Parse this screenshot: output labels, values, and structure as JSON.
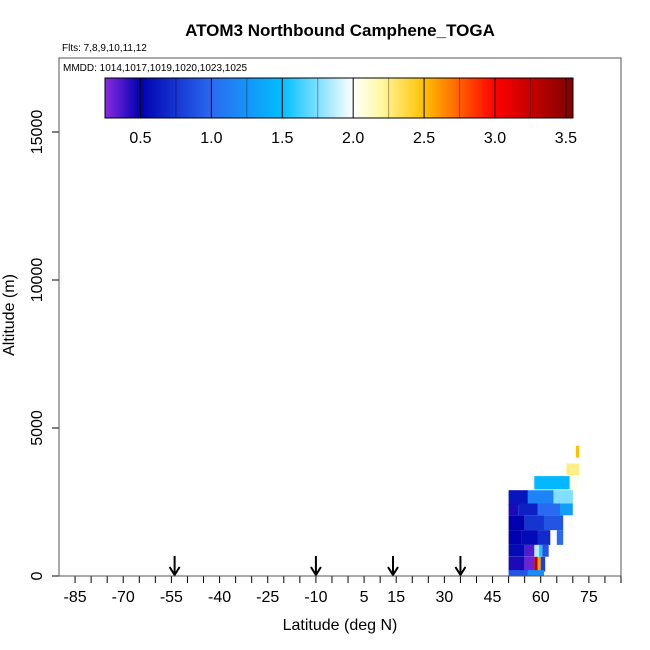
{
  "chart_data": {
    "type": "heatmap",
    "title": "ATOM3 Northbound Camphene_TOGA",
    "flights_label": "Flts: 7,8,9,10,11,12",
    "dates_label": "MMDD: 1014,1017,1019,1020,1023,1025",
    "xlabel": "Latitude (deg N)",
    "ylabel": "Altitude (m)",
    "xlim": [
      -90,
      85
    ],
    "ylim": [
      0,
      17500
    ],
    "x_ticks": [
      -85,
      -70,
      -55,
      -40,
      -25,
      -10,
      5,
      15,
      30,
      45,
      60,
      75
    ],
    "x_tick_labels": [
      "-85",
      "-70",
      "-55",
      "-40",
      "-25",
      "-10",
      "5",
      "15",
      "30",
      "45",
      "60",
      "75"
    ],
    "y_ticks": [
      0,
      5000,
      10000,
      15000
    ],
    "y_tick_labels": [
      "0",
      "5000",
      "10000",
      "15000"
    ],
    "colorbar": {
      "range": [
        0.25,
        3.55
      ],
      "ticks": [
        0.5,
        1.0,
        1.5,
        2.0,
        2.5,
        3.0,
        3.5
      ],
      "tick_labels": [
        "0.5",
        "1.0",
        "1.5",
        "2.0",
        "2.5",
        "3.0",
        "3.5"
      ],
      "stops": [
        {
          "v": 0.25,
          "c": "#8a2be2"
        },
        {
          "v": 0.5,
          "c": "#0000b0"
        },
        {
          "v": 1.0,
          "c": "#2a6af0"
        },
        {
          "v": 1.5,
          "c": "#00bfff"
        },
        {
          "v": 2.0,
          "c": "#ffffff"
        },
        {
          "v": 2.2,
          "c": "#fff8a0"
        },
        {
          "v": 2.5,
          "c": "#ffc000"
        },
        {
          "v": 3.0,
          "c": "#ff0000"
        },
        {
          "v": 3.55,
          "c": "#800000"
        }
      ]
    },
    "flight_arrows_lat": [
      -54,
      -10,
      14,
      35
    ],
    "cells": [
      {
        "lat": 71.5,
        "alt": 4200,
        "w": 1.0,
        "h": 400,
        "v": 2.5
      },
      {
        "lat": 70.0,
        "alt": 3600,
        "w": 4,
        "h": 400,
        "v": 2.25
      },
      {
        "lat": 63.5,
        "alt": 3150,
        "w": 11,
        "h": 450,
        "v": 1.45
      },
      {
        "lat": 70.5,
        "alt": 3150,
        "w": 2,
        "h": 450,
        "v": 2.05
      },
      {
        "lat": 53.0,
        "alt": 2650,
        "w": 6,
        "h": 500,
        "v": 0.6
      },
      {
        "lat": 60.0,
        "alt": 2650,
        "w": 8,
        "h": 500,
        "v": 1.15
      },
      {
        "lat": 67.0,
        "alt": 2650,
        "w": 6,
        "h": 500,
        "v": 1.75
      },
      {
        "lat": 51.5,
        "alt": 2250,
        "w": 3,
        "h": 400,
        "v": 0.45
      },
      {
        "lat": 56.0,
        "alt": 2250,
        "w": 6,
        "h": 400,
        "v": 0.65
      },
      {
        "lat": 62.5,
        "alt": 2250,
        "w": 7,
        "h": 400,
        "v": 1.0
      },
      {
        "lat": 68.0,
        "alt": 2250,
        "w": 4,
        "h": 400,
        "v": 1.3
      },
      {
        "lat": 52.5,
        "alt": 1800,
        "w": 5,
        "h": 500,
        "v": 0.5
      },
      {
        "lat": 58.0,
        "alt": 1800,
        "w": 6,
        "h": 500,
        "v": 0.75
      },
      {
        "lat": 64.0,
        "alt": 1800,
        "w": 6,
        "h": 500,
        "v": 0.9
      },
      {
        "lat": 52.0,
        "alt": 1300,
        "w": 4,
        "h": 500,
        "v": 0.5
      },
      {
        "lat": 56.5,
        "alt": 1300,
        "w": 5,
        "h": 500,
        "v": 0.55
      },
      {
        "lat": 61.0,
        "alt": 1300,
        "w": 4,
        "h": 500,
        "v": 0.7
      },
      {
        "lat": 66.0,
        "alt": 1300,
        "w": 2,
        "h": 500,
        "v": 1.0
      },
      {
        "lat": 52.5,
        "alt": 850,
        "w": 5,
        "h": 400,
        "v": 0.55
      },
      {
        "lat": 56.5,
        "alt": 850,
        "w": 3,
        "h": 400,
        "v": 0.35
      },
      {
        "lat": 58.8,
        "alt": 850,
        "w": 1.5,
        "h": 400,
        "v": 1.85
      },
      {
        "lat": 60.0,
        "alt": 850,
        "w": 1,
        "h": 400,
        "v": 1.55
      },
      {
        "lat": 61.5,
        "alt": 850,
        "w": 2,
        "h": 400,
        "v": 0.9
      },
      {
        "lat": 52.5,
        "alt": 400,
        "w": 5,
        "h": 500,
        "v": 0.45
      },
      {
        "lat": 56.5,
        "alt": 400,
        "w": 3,
        "h": 500,
        "v": 0.3
      },
      {
        "lat": 58.5,
        "alt": 400,
        "w": 1,
        "h": 500,
        "v": 3.3
      },
      {
        "lat": 59.5,
        "alt": 400,
        "w": 1,
        "h": 500,
        "v": 2.6
      },
      {
        "lat": 60.7,
        "alt": 400,
        "w": 1.4,
        "h": 500,
        "v": 0.8
      },
      {
        "lat": 53.0,
        "alt": 100,
        "w": 6,
        "h": 200,
        "v": 0.9
      },
      {
        "lat": 58.5,
        "alt": 100,
        "w": 5,
        "h": 200,
        "v": 1.2
      }
    ]
  }
}
